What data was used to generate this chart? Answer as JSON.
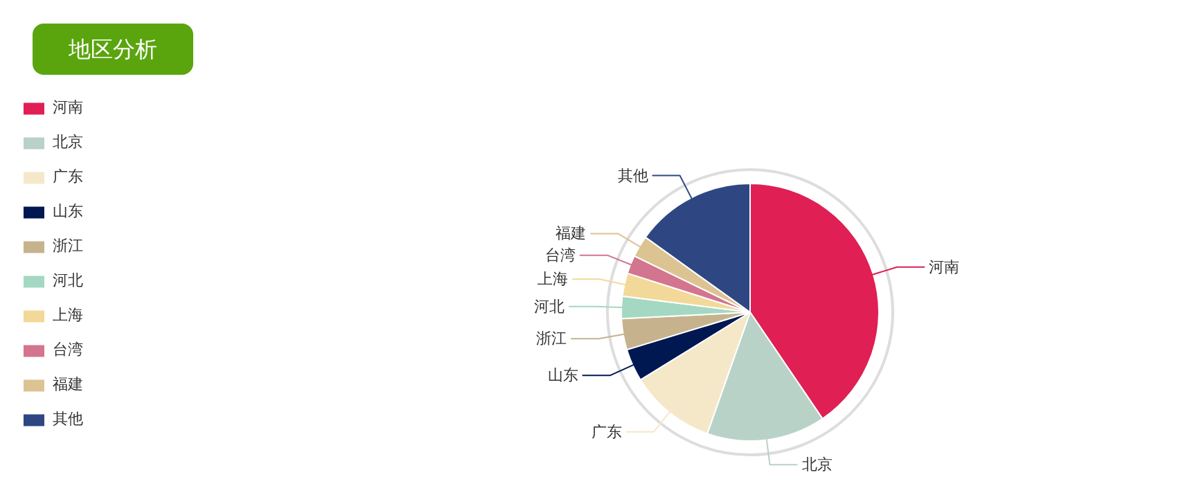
{
  "chart_data": {
    "type": "pie",
    "title": "地区分析",
    "categories": [
      "河南",
      "北京",
      "广东",
      "山东",
      "浙江",
      "河北",
      "上海",
      "台湾",
      "福建",
      "其他"
    ],
    "values": [
      40.5,
      14.9,
      10.8,
      4.1,
      3.9,
      2.8,
      2.9,
      2.3,
      2.7,
      15.1
    ],
    "colors": [
      "#e01f54",
      "#b8d2c7",
      "#f5e8c8",
      "#001852",
      "#c6b38e",
      "#a4d8c2",
      "#f3d999",
      "#d3758f",
      "#dcc392",
      "#2e4783"
    ],
    "legend": "top left"
  }
}
